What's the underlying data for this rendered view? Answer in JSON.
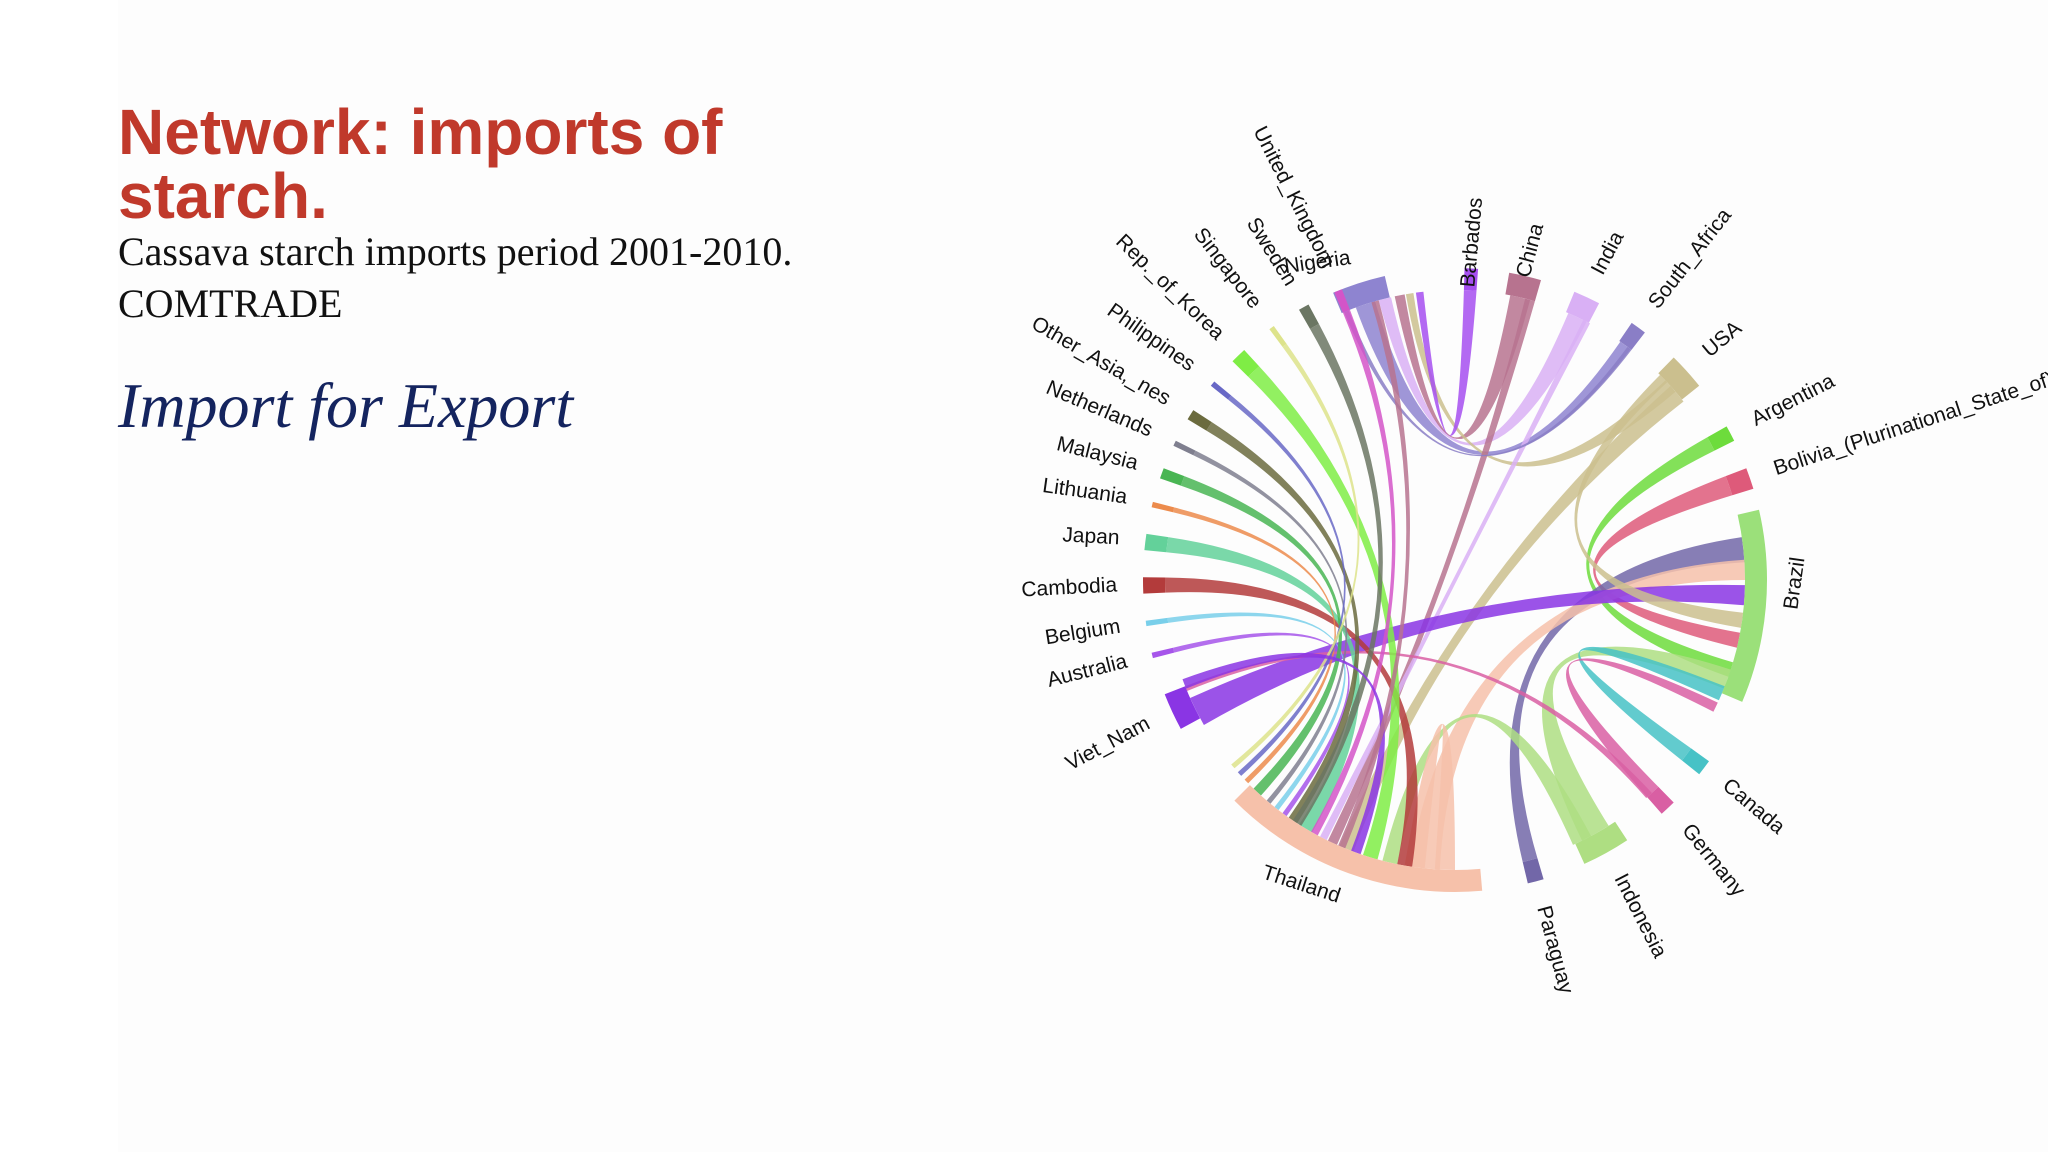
{
  "slide": {
    "title": "Network: imports of starch.",
    "subtitle_line1": "Cassava starch imports period 2001-2010.",
    "subtitle_line2": "COMTRADE",
    "tagline": "Import for Export"
  },
  "diagram": {
    "type": "chord",
    "nodes": [
      {
        "id": "nigeria",
        "label": "Nigeria",
        "color": "#8e84d0",
        "angle": -108,
        "span": 10,
        "rot": -8
      },
      {
        "id": "barbados",
        "label": "Barbados",
        "color": "#a64ff0",
        "angle": -87,
        "span": 2.5,
        "rot": -85
      },
      {
        "id": "china",
        "label": "China",
        "color": "#b7738f",
        "angle": -77,
        "span": 6,
        "rot": -75
      },
      {
        "id": "india",
        "label": "India",
        "color": "#d9b0f5",
        "angle": -65,
        "span": 5,
        "rot": -62
      },
      {
        "id": "south-africa",
        "label": "South_Africa",
        "color": "#8a7ec6",
        "angle": -54,
        "span": 3,
        "rot": -52
      },
      {
        "id": "usa",
        "label": "USA",
        "color": "#cbbf8e",
        "angle": -42,
        "span": 7,
        "rot": -40
      },
      {
        "id": "argentina",
        "label": "Argentina",
        "color": "#6ddc3c",
        "angle": -28,
        "span": 3,
        "rot": -27
      },
      {
        "id": "bolivia",
        "label": "Bolivia_(Plurinational_State_of)",
        "color": "#de5a7a",
        "angle": -19,
        "span": 4,
        "rot": -18
      },
      {
        "id": "brazil",
        "label": "Brazil",
        "color": "#9be07a",
        "angle": 5,
        "span": 36,
        "rot": -82
      },
      {
        "id": "canada",
        "label": "Canada",
        "color": "#47c2c6",
        "angle": 37,
        "span": 3,
        "rot": 40
      },
      {
        "id": "germany",
        "label": "Germany",
        "color": "#d95fa3",
        "angle": 47,
        "span": 3,
        "rot": 51
      },
      {
        "id": "indonesia",
        "label": "Indonesia",
        "color": "#aede82",
        "angle": 61,
        "span": 9,
        "rot": 63
      },
      {
        "id": "paraguay",
        "label": "Paraguay",
        "color": "#7267a8",
        "angle": 75,
        "span": 3,
        "rot": 75
      },
      {
        "id": "thailand",
        "label": "Thailand",
        "color": "#f6c1aa",
        "angle": 110,
        "span": 50,
        "rot": 18
      },
      {
        "id": "viet-nam",
        "label": "Viet_Nam",
        "color": "#8a35e4",
        "angle": 155,
        "span": 7,
        "rot": -28
      },
      {
        "id": "australia",
        "label": "Australia",
        "color": "#a655ea",
        "angle": 166,
        "span": 1,
        "rot": -14
      },
      {
        "id": "belgium",
        "label": "Belgium",
        "color": "#79cfea",
        "angle": 172,
        "span": 1,
        "rot": -9
      },
      {
        "id": "cambodia",
        "label": "Cambodia",
        "color": "#b33b3b",
        "angle": 179,
        "span": 3,
        "rot": -3
      },
      {
        "id": "japan",
        "label": "Japan",
        "color": "#63d19a",
        "angle": 187,
        "span": 3,
        "rot": 3
      },
      {
        "id": "lithuania",
        "label": "Lithuania",
        "color": "#ec8b4c",
        "angle": 194,
        "span": 1,
        "rot": 8
      },
      {
        "id": "malaysia",
        "label": "Malaysia",
        "color": "#49b553",
        "angle": 200,
        "span": 2,
        "rot": 14
      },
      {
        "id": "netherlands",
        "label": "Netherlands",
        "color": "#7f7f8f",
        "angle": 206,
        "span": 1,
        "rot": 23
      },
      {
        "id": "other-asia",
        "label": "Other_Asia,_nes",
        "color": "#6b6b3e",
        "angle": 212,
        "span": 2,
        "rot": 30
      },
      {
        "id": "philippines",
        "label": "Philippines",
        "color": "#6868c6",
        "angle": 219,
        "span": 1,
        "rot": 35
      },
      {
        "id": "rep-of-korea",
        "label": "Rep._of_Korea",
        "color": "#7fed45",
        "angle": 226,
        "span": 3,
        "rot": 44
      },
      {
        "id": "singapore",
        "label": "Singapore",
        "color": "#dde38b",
        "angle": 234,
        "span": 1,
        "rot": 52
      },
      {
        "id": "sweden",
        "label": "Sweden",
        "color": "#6b7663",
        "angle": 241,
        "span": 2,
        "rot": 58
      },
      {
        "id": "united-kingdom",
        "label": "United_Kingdom",
        "color": "#d355c8",
        "angle": 248,
        "span": 1.5,
        "rot": 63
      }
    ],
    "links": [
      {
        "source": "nigeria",
        "target": "south-africa",
        "sa": -108,
        "sw": 4,
        "ta": -54,
        "tw": 2.5,
        "color": "#8e84d0"
      },
      {
        "source": "nigeria",
        "target": "india",
        "sa": -104,
        "sw": 2.5,
        "ta": -65,
        "tw": 4,
        "color": "#d9b0f5"
      },
      {
        "source": "china",
        "target": "nigeria",
        "sa": -77,
        "sw": 4,
        "ta": -101,
        "tw": 2,
        "color": "#b7738f"
      },
      {
        "source": "nigeria",
        "target": "usa",
        "sa": -99,
        "sw": 1.5,
        "ta": -42,
        "tw": 3,
        "color": "#cbbf8e"
      },
      {
        "source": "barbados",
        "target": "nigeria",
        "sa": -87,
        "sw": 2.5,
        "ta": -97,
        "tw": 1.5,
        "color": "#a64ff0"
      },
      {
        "source": "usa",
        "target": "thailand",
        "sa": -40,
        "sw": 4,
        "ta": 112,
        "tw": 3,
        "color": "#cbbf8e"
      },
      {
        "source": "china",
        "target": "thailand",
        "sa": -75,
        "sw": 2,
        "ta": 115,
        "tw": 2,
        "color": "#b7738f"
      },
      {
        "source": "india",
        "target": "thailand",
        "sa": -63,
        "sw": 1.5,
        "ta": 117,
        "tw": 1.5,
        "color": "#d9b0f5"
      },
      {
        "source": "south-africa",
        "target": "nigeria",
        "sa": -53,
        "sw": 1,
        "ta": -112,
        "tw": 1,
        "color": "#8a7ec6"
      },
      {
        "source": "argentina",
        "target": "brazil",
        "sa": -28,
        "sw": 3,
        "ta": 18,
        "tw": 3,
        "color": "#6ddc3c"
      },
      {
        "source": "bolivia",
        "target": "brazil",
        "sa": -19,
        "sw": 4,
        "ta": 12,
        "tw": 3,
        "color": "#de5a7a"
      },
      {
        "source": "brazil",
        "target": "indonesia",
        "sa": 20,
        "sw": 4,
        "ta": 61,
        "tw": 6,
        "color": "#aede82"
      },
      {
        "source": "brazil",
        "target": "canada",
        "sa": 23,
        "sw": 3,
        "ta": 37,
        "tw": 3,
        "color": "#47c2c6"
      },
      {
        "source": "brazil",
        "target": "germany",
        "sa": 26,
        "sw": 2,
        "ta": 47,
        "tw": 3,
        "color": "#d95fa3"
      },
      {
        "source": "brazil",
        "target": "paraguay",
        "sa": -6,
        "sw": 5,
        "ta": 75,
        "tw": 3,
        "color": "#7267a8"
      },
      {
        "source": "brazil",
        "target": "thailand",
        "sa": -2,
        "sw": 4,
        "ta": 96,
        "tw": 6,
        "color": "#f6c1aa"
      },
      {
        "source": "brazil",
        "target": "viet-nam",
        "sa": 3,
        "sw": 4,
        "ta": 153,
        "tw": 6,
        "color": "#8a35e4"
      },
      {
        "source": "brazil",
        "target": "usa",
        "sa": 8,
        "sw": 3,
        "ta": -44,
        "tw": 2,
        "color": "#cbbf8e"
      },
      {
        "source": "indonesia",
        "target": "thailand",
        "sa": 64,
        "sw": 4,
        "ta": 103,
        "tw": 3,
        "color": "#aede82"
      },
      {
        "source": "germany",
        "target": "viet-nam",
        "sa": 48,
        "sw": 1.5,
        "ta": 158,
        "tw": 1,
        "color": "#d95fa3"
      },
      {
        "source": "thailand",
        "target": "thailand",
        "sa": 98,
        "sw": 4,
        "ta": 92,
        "tw": 4,
        "color": "#f6c1aa"
      },
      {
        "source": "cambodia",
        "target": "thailand",
        "sa": 179,
        "sw": 3,
        "ta": 100,
        "tw": 3,
        "color": "#b33b3b"
      },
      {
        "source": "japan",
        "target": "thailand",
        "sa": 187,
        "sw": 3,
        "ta": 121,
        "tw": 3,
        "color": "#63d19a"
      },
      {
        "source": "australia",
        "target": "thailand",
        "sa": 166,
        "sw": 1,
        "ta": 126,
        "tw": 1,
        "color": "#a655ea"
      },
      {
        "source": "belgium",
        "target": "thailand",
        "sa": 172,
        "sw": 1,
        "ta": 128,
        "tw": 1,
        "color": "#79cfea"
      },
      {
        "source": "lithuania",
        "target": "thailand",
        "sa": 194,
        "sw": 1,
        "ta": 136,
        "tw": 1,
        "color": "#ec8b4c"
      },
      {
        "source": "malaysia",
        "target": "thailand",
        "sa": 200,
        "sw": 2,
        "ta": 133,
        "tw": 2,
        "color": "#49b553"
      },
      {
        "source": "netherlands",
        "target": "thailand",
        "sa": 206,
        "sw": 1,
        "ta": 130,
        "tw": 1,
        "color": "#7f7f8f"
      },
      {
        "source": "other-asia",
        "target": "thailand",
        "sa": 212,
        "sw": 2,
        "ta": 124,
        "tw": 2,
        "color": "#6b6b3e"
      },
      {
        "source": "philippines",
        "target": "thailand",
        "sa": 219,
        "sw": 1,
        "ta": 138,
        "tw": 1,
        "color": "#6868c6"
      },
      {
        "source": "rep-of-korea",
        "target": "thailand",
        "sa": 226,
        "sw": 3,
        "ta": 107,
        "tw": 3,
        "color": "#7fed45"
      },
      {
        "source": "singapore",
        "target": "thailand",
        "sa": 234,
        "sw": 1,
        "ta": 140,
        "tw": 1,
        "color": "#dde38b"
      },
      {
        "source": "sweden",
        "target": "thailand",
        "sa": 241,
        "sw": 2,
        "ta": 123,
        "tw": 2,
        "color": "#6b7663"
      },
      {
        "source": "united-kingdom",
        "target": "thailand",
        "sa": 248,
        "sw": 1.5,
        "ta": 119,
        "tw": 1.5,
        "color": "#d355c8"
      },
      {
        "source": "viet-nam",
        "target": "thailand",
        "sa": 159,
        "sw": 2,
        "ta": 110,
        "tw": 2,
        "color": "#8a35e4"
      },
      {
        "source": "thailand",
        "target": "nigeria",
        "sa": 113,
        "sw": 1.5,
        "ta": -106,
        "tw": 1.5,
        "color": "#b7738f"
      }
    ]
  }
}
